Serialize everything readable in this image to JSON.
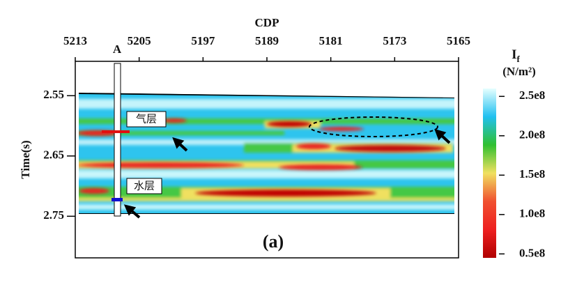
{
  "chart_data": {
    "type": "section",
    "xlabel": "CDP",
    "ylabel": "Time(s)",
    "xlim": [
      5213,
      5165
    ],
    "xticks": [
      5213,
      5205,
      5197,
      5189,
      5181,
      5173,
      5165
    ],
    "ylim": [
      2.493,
      2.819
    ],
    "yticks": [
      2.55,
      2.65,
      2.75
    ],
    "colorbar": {
      "label": "I",
      "label_sub": "f",
      "unit": "(N/m²)",
      "lim": [
        45000000,
        260000000
      ],
      "ticks": [
        {
          "value": 250000000,
          "label": "2.5e8"
        },
        {
          "value": 200000000,
          "label": "2.0e8"
        },
        {
          "value": 150000000,
          "label": "1.5e8"
        },
        {
          "value": 100000000,
          "label": "1.0e8"
        },
        {
          "value": 50000000,
          "label": "0.5e8"
        }
      ],
      "colors": [
        "#b00000",
        "#ee2020",
        "#f05030",
        "#f0e060",
        "#30c030",
        "#20c0f0",
        "#e6ffff"
      ]
    },
    "annotations": {
      "well": "A",
      "gas": "气层",
      "water": "水层",
      "panel": "(a)"
    }
  }
}
